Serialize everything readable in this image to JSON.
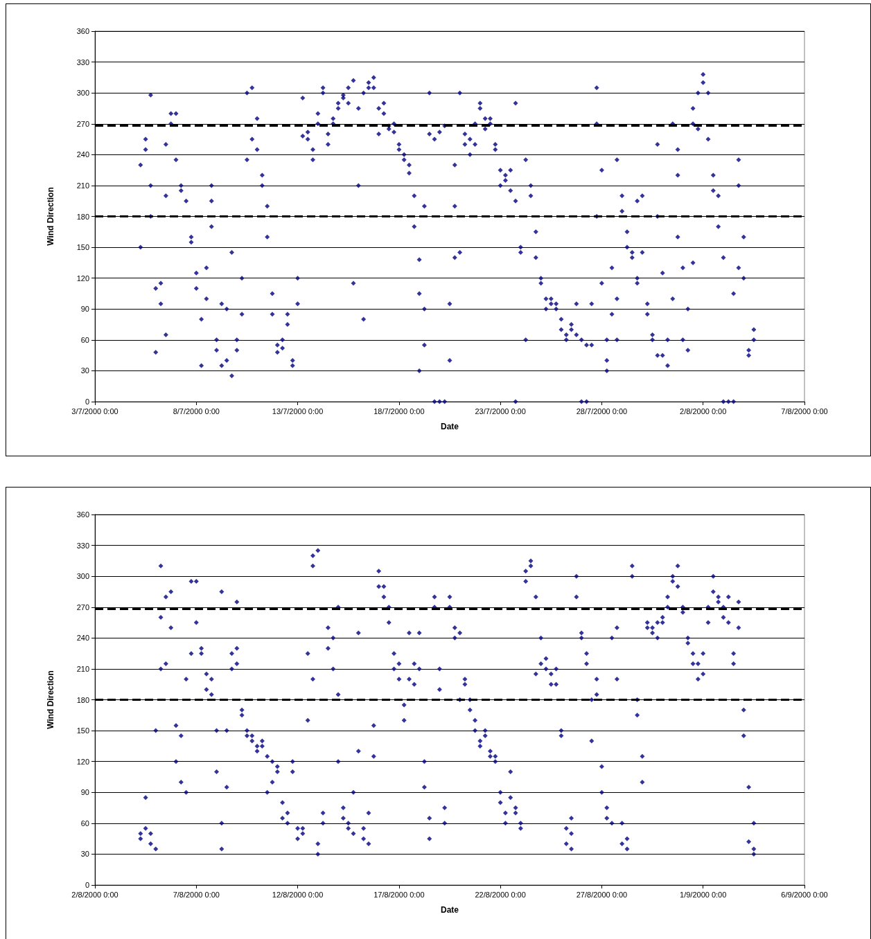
{
  "chart_data": [
    {
      "type": "scatter",
      "xlabel": "Date",
      "ylabel": "Wind Direction",
      "marker": "diamond",
      "grid": "y",
      "xlim": [
        "2000-07-03",
        "2000-08-07"
      ],
      "xticks": [
        {
          "value": "2000-07-03",
          "label": "3/7/2000 0:00"
        },
        {
          "value": "2000-07-08",
          "label": "8/7/2000 0:00"
        },
        {
          "value": "2000-07-13",
          "label": "13/7/2000 0:00"
        },
        {
          "value": "2000-07-18",
          "label": "18/7/2000 0:00"
        },
        {
          "value": "2000-07-23",
          "label": "23/7/2000 0:00"
        },
        {
          "value": "2000-07-28",
          "label": "28/7/2000 0:00"
        },
        {
          "value": "2000-08-02",
          "label": "2/8/2000 0:00"
        },
        {
          "value": "2000-08-07",
          "label": "7/8/2000 0:00"
        }
      ],
      "ylim": [
        0,
        360
      ],
      "yticks": [
        0,
        30,
        60,
        90,
        120,
        150,
        180,
        210,
        240,
        270,
        300,
        330,
        360
      ],
      "ref_lines": [
        {
          "axis": "y",
          "value": 268,
          "label": null,
          "color": "#000000",
          "line_style": "dashed"
        },
        {
          "axis": "y",
          "value": 180,
          "label": null,
          "color": "#000000",
          "line_style": "dashed"
        }
      ],
      "series": [
        {
          "color": "#000080",
          "x": [
            "2000-07-05T06:00",
            "2000-07-05T06:00",
            "2000-07-05T12:00",
            "2000-07-05T12:00",
            "2000-07-05T18:00",
            "2000-07-05T18:00",
            "2000-07-05T18:00",
            "2000-07-06T00:00",
            "2000-07-06T00:00",
            "2000-07-06T06:00",
            "2000-07-06T06:00",
            "2000-07-06T12:00",
            "2000-07-06T12:00",
            "2000-07-06T12:00",
            "2000-07-06T18:00",
            "2000-07-06T18:00",
            "2000-07-07T00:00",
            "2000-07-07T00:00",
            "2000-07-07T06:00",
            "2000-07-07T06:00",
            "2000-07-07T12:00",
            "2000-07-07T18:00",
            "2000-07-07T18:00",
            "2000-07-08T00:00",
            "2000-07-08T00:00",
            "2000-07-08T06:00",
            "2000-07-08T06:00",
            "2000-07-08T12:00",
            "2000-07-08T12:00",
            "2000-07-08T18:00",
            "2000-07-08T18:00",
            "2000-07-08T18:00",
            "2000-07-09T00:00",
            "2000-07-09T00:00",
            "2000-07-09T06:00",
            "2000-07-09T06:00",
            "2000-07-09T12:00",
            "2000-07-09T12:00",
            "2000-07-09T18:00",
            "2000-07-09T18:00",
            "2000-07-10T00:00",
            "2000-07-10T00:00",
            "2000-07-10T06:00",
            "2000-07-10T06:00",
            "2000-07-10T12:00",
            "2000-07-10T12:00",
            "2000-07-10T18:00",
            "2000-07-10T18:00",
            "2000-07-11T00:00",
            "2000-07-11T00:00",
            "2000-07-11T06:00",
            "2000-07-11T06:00",
            "2000-07-11T12:00",
            "2000-07-11T12:00",
            "2000-07-11T18:00",
            "2000-07-11T18:00",
            "2000-07-12T00:00",
            "2000-07-12T00:00",
            "2000-07-12T06:00",
            "2000-07-12T06:00",
            "2000-07-12T12:00",
            "2000-07-12T12:00",
            "2000-07-12T18:00",
            "2000-07-12T18:00",
            "2000-07-13T00:00",
            "2000-07-13T00:00",
            "2000-07-13T06:00",
            "2000-07-13T06:00",
            "2000-07-13T12:00",
            "2000-07-13T12:00",
            "2000-07-13T18:00",
            "2000-07-13T18:00",
            "2000-07-14T00:00",
            "2000-07-14T00:00",
            "2000-07-14T06:00",
            "2000-07-14T06:00",
            "2000-07-14T12:00",
            "2000-07-14T12:00",
            "2000-07-14T18:00",
            "2000-07-14T18:00",
            "2000-07-15T00:00",
            "2000-07-15T00:00",
            "2000-07-15T06:00",
            "2000-07-15T06:00",
            "2000-07-15T12:00",
            "2000-07-15T12:00",
            "2000-07-15T18:00",
            "2000-07-15T18:00",
            "2000-07-16T00:00",
            "2000-07-16T00:00",
            "2000-07-16T06:00",
            "2000-07-16T06:00",
            "2000-07-16T12:00",
            "2000-07-16T12:00",
            "2000-07-16T18:00",
            "2000-07-16T18:00",
            "2000-07-17T00:00",
            "2000-07-17T00:00",
            "2000-07-17T06:00",
            "2000-07-17T06:00",
            "2000-07-17T12:00",
            "2000-07-17T12:00",
            "2000-07-17T18:00",
            "2000-07-17T18:00",
            "2000-07-18T00:00",
            "2000-07-18T00:00",
            "2000-07-18T06:00",
            "2000-07-18T06:00",
            "2000-07-18T12:00",
            "2000-07-18T12:00",
            "2000-07-18T18:00",
            "2000-07-18T18:00",
            "2000-07-19T00:00",
            "2000-07-19T00:00",
            "2000-07-19T00:00",
            "2000-07-19T06:00",
            "2000-07-19T06:00",
            "2000-07-19T06:00",
            "2000-07-19T12:00",
            "2000-07-19T12:00",
            "2000-07-19T18:00",
            "2000-07-19T18:00",
            "2000-07-20T00:00",
            "2000-07-20T00:00",
            "2000-07-20T06:00",
            "2000-07-20T06:00",
            "2000-07-20T12:00",
            "2000-07-20T12:00",
            "2000-07-20T18:00",
            "2000-07-20T18:00",
            "2000-07-20T18:00",
            "2000-07-21T00:00",
            "2000-07-21T00:00",
            "2000-07-21T06:00",
            "2000-07-21T06:00",
            "2000-07-21T12:00",
            "2000-07-21T12:00",
            "2000-07-21T18:00",
            "2000-07-21T18:00",
            "2000-07-22T00:00",
            "2000-07-22T00:00",
            "2000-07-22T06:00",
            "2000-07-22T06:00",
            "2000-07-22T12:00",
            "2000-07-22T12:00",
            "2000-07-22T18:00",
            "2000-07-22T18:00",
            "2000-07-23T00:00",
            "2000-07-23T00:00",
            "2000-07-23T06:00",
            "2000-07-23T06:00",
            "2000-07-23T12:00",
            "2000-07-23T12:00",
            "2000-07-23T18:00",
            "2000-07-23T18:00",
            "2000-07-23T18:00",
            "2000-07-24T00:00",
            "2000-07-24T00:00",
            "2000-07-24T06:00",
            "2000-07-24T06:00",
            "2000-07-24T12:00",
            "2000-07-24T12:00",
            "2000-07-24T18:00",
            "2000-07-24T18:00",
            "2000-07-25T00:00",
            "2000-07-25T00:00",
            "2000-07-25T06:00",
            "2000-07-25T06:00",
            "2000-07-25T12:00",
            "2000-07-25T12:00",
            "2000-07-25T18:00",
            "2000-07-25T18:00",
            "2000-07-26T00:00",
            "2000-07-26T00:00",
            "2000-07-26T06:00",
            "2000-07-26T06:00",
            "2000-07-26T12:00",
            "2000-07-26T12:00",
            "2000-07-26T18:00",
            "2000-07-26T18:00",
            "2000-07-27T00:00",
            "2000-07-27T00:00",
            "2000-07-27T06:00",
            "2000-07-27T06:00",
            "2000-07-27T12:00",
            "2000-07-27T12:00",
            "2000-07-27T18:00",
            "2000-07-27T18:00",
            "2000-07-27T18:00",
            "2000-07-28T00:00",
            "2000-07-28T00:00",
            "2000-07-28T06:00",
            "2000-07-28T06:00",
            "2000-07-28T06:00",
            "2000-07-28T12:00",
            "2000-07-28T12:00",
            "2000-07-28T18:00",
            "2000-07-28T18:00",
            "2000-07-28T18:00",
            "2000-07-29T00:00",
            "2000-07-29T00:00",
            "2000-07-29T06:00",
            "2000-07-29T06:00",
            "2000-07-29T12:00",
            "2000-07-29T12:00",
            "2000-07-29T18:00",
            "2000-07-29T18:00",
            "2000-07-29T18:00",
            "2000-07-30T00:00",
            "2000-07-30T00:00",
            "2000-07-30T06:00",
            "2000-07-30T06:00",
            "2000-07-30T12:00",
            "2000-07-30T12:00",
            "2000-07-30T18:00",
            "2000-07-30T18:00",
            "2000-07-30T18:00",
            "2000-07-31T00:00",
            "2000-07-31T00:00",
            "2000-07-31T06:00",
            "2000-07-31T06:00",
            "2000-07-31T12:00",
            "2000-07-31T12:00",
            "2000-07-31T18:00",
            "2000-07-31T18:00",
            "2000-07-31T18:00",
            "2000-08-01T00:00",
            "2000-08-01T00:00",
            "2000-08-01T06:00",
            "2000-08-01T06:00",
            "2000-08-01T12:00",
            "2000-08-01T12:00",
            "2000-08-01T12:00",
            "2000-08-01T18:00",
            "2000-08-01T18:00",
            "2000-08-02T00:00",
            "2000-08-02T00:00",
            "2000-08-02T06:00",
            "2000-08-02T06:00",
            "2000-08-02T12:00",
            "2000-08-02T12:00",
            "2000-08-02T18:00",
            "2000-08-02T18:00",
            "2000-08-03T00:00",
            "2000-08-03T00:00",
            "2000-08-03T06:00",
            "2000-08-03T12:00",
            "2000-08-03T12:00",
            "2000-08-03T18:00",
            "2000-08-03T18:00",
            "2000-08-03T18:00",
            "2000-08-04T00:00",
            "2000-08-04T00:00",
            "2000-08-04T06:00",
            "2000-08-04T06:00",
            "2000-08-04T12:00",
            "2000-08-04T12:00"
          ],
          "values": [
            150,
            230,
            255,
            245,
            210,
            298,
            180,
            110,
            48,
            95,
            115,
            65,
            200,
            250,
            270,
            280,
            280,
            235,
            210,
            205,
            195,
            160,
            155,
            125,
            110,
            80,
            35,
            130,
            100,
            210,
            195,
            170,
            60,
            50,
            95,
            35,
            90,
            40,
            145,
            25,
            60,
            50,
            120,
            85,
            235,
            300,
            305,
            255,
            275,
            245,
            220,
            210,
            190,
            160,
            105,
            85,
            48,
            55,
            52,
            60,
            85,
            75,
            40,
            35,
            120,
            95,
            258,
            295,
            255,
            262,
            235,
            245,
            270,
            280,
            305,
            300,
            260,
            250,
            270,
            275,
            285,
            290,
            295,
            298,
            305,
            290,
            312,
            115,
            210,
            285,
            300,
            80,
            310,
            305,
            315,
            305,
            285,
            260,
            280,
            290,
            268,
            265,
            270,
            262,
            250,
            245,
            235,
            240,
            230,
            222,
            200,
            170,
            105,
            30,
            138,
            55,
            90,
            190,
            300,
            260,
            255,
            0,
            0,
            262,
            0,
            268,
            40,
            95,
            230,
            190,
            140,
            300,
            145,
            260,
            250,
            240,
            255,
            250,
            270,
            285,
            290,
            265,
            275,
            275,
            270,
            250,
            245,
            225,
            210,
            215,
            220,
            225,
            205,
            0,
            290,
            195,
            150,
            145,
            60,
            235,
            200,
            210,
            165,
            140,
            120,
            115,
            90,
            100,
            100,
            95,
            95,
            90,
            80,
            70,
            60,
            65,
            75,
            70,
            95,
            65,
            0,
            60,
            0,
            55,
            55,
            95,
            305,
            270,
            180,
            225,
            115,
            40,
            30,
            60,
            130,
            85,
            235,
            100,
            60,
            200,
            185,
            165,
            150,
            145,
            140,
            120,
            115,
            195,
            145,
            200,
            95,
            85,
            65,
            60,
            180,
            250,
            45,
            45,
            125,
            60,
            35,
            270,
            100,
            245,
            220,
            160,
            130,
            60,
            90,
            50,
            270,
            285,
            135,
            265,
            300,
            310,
            318,
            300,
            255,
            220,
            205,
            200,
            170,
            140,
            0,
            0,
            0,
            105,
            130,
            235,
            210,
            160,
            120,
            45,
            50,
            70,
            60
          ]
        }
      ]
    },
    {
      "type": "scatter",
      "xlabel": "Date",
      "ylabel": "Wind Direction",
      "marker": "diamond",
      "grid": "y",
      "xlim": [
        "2000-08-02",
        "2000-09-06"
      ],
      "xticks": [
        {
          "value": "2000-08-02",
          "label": "2/8/2000 0:00"
        },
        {
          "value": "2000-08-07",
          "label": "7/8/2000 0:00"
        },
        {
          "value": "2000-08-12",
          "label": "12/8/2000 0:00"
        },
        {
          "value": "2000-08-17",
          "label": "17/8/2000 0:00"
        },
        {
          "value": "2000-08-22",
          "label": "22/8/2000 0:00"
        },
        {
          "value": "2000-08-27",
          "label": "27/8/2000 0:00"
        },
        {
          "value": "2000-09-01",
          "label": "1/9/2000 0:00"
        },
        {
          "value": "2000-09-06",
          "label": "6/9/2000 0:00"
        }
      ],
      "ylim": [
        0,
        360
      ],
      "yticks": [
        0,
        30,
        60,
        90,
        120,
        150,
        180,
        210,
        240,
        270,
        300,
        330,
        360
      ],
      "ref_lines": [
        {
          "axis": "y",
          "value": 268,
          "label": null,
          "color": "#000000",
          "line_style": "dashed"
        },
        {
          "axis": "y",
          "value": 180,
          "label": null,
          "color": "#000000",
          "line_style": "dashed"
        }
      ],
      "series": [
        {
          "color": "#000080",
          "x": [
            "2000-08-04T06:00",
            "2000-08-04T06:00",
            "2000-08-04T12:00",
            "2000-08-04T12:00",
            "2000-08-04T18:00",
            "2000-08-04T18:00",
            "2000-08-05T00:00",
            "2000-08-05T00:00",
            "2000-08-05T06:00",
            "2000-08-05T06:00",
            "2000-08-05T06:00",
            "2000-08-05T12:00",
            "2000-08-05T12:00",
            "2000-08-05T18:00",
            "2000-08-05T18:00",
            "2000-08-06T00:00",
            "2000-08-06T00:00",
            "2000-08-06T06:00",
            "2000-08-06T06:00",
            "2000-08-06T12:00",
            "2000-08-06T12:00",
            "2000-08-06T18:00",
            "2000-08-06T18:00",
            "2000-08-07T00:00",
            "2000-08-07T00:00",
            "2000-08-07T06:00",
            "2000-08-07T06:00",
            "2000-08-07T12:00",
            "2000-08-07T12:00",
            "2000-08-07T18:00",
            "2000-08-07T18:00",
            "2000-08-08T00:00",
            "2000-08-08T00:00",
            "2000-08-08T06:00",
            "2000-08-08T06:00",
            "2000-08-08T06:00",
            "2000-08-08T12:00",
            "2000-08-08T12:00",
            "2000-08-08T18:00",
            "2000-08-08T18:00",
            "2000-08-09T00:00",
            "2000-08-09T00:00",
            "2000-08-09T00:00",
            "2000-08-09T06:00",
            "2000-08-09T06:00",
            "2000-08-09T12:00",
            "2000-08-09T12:00",
            "2000-08-09T18:00",
            "2000-08-09T18:00",
            "2000-08-10T00:00",
            "2000-08-10T00:00",
            "2000-08-10T06:00",
            "2000-08-10T06:00",
            "2000-08-10T12:00",
            "2000-08-10T12:00",
            "2000-08-10T18:00",
            "2000-08-10T18:00",
            "2000-08-11T00:00",
            "2000-08-11T00:00",
            "2000-08-11T06:00",
            "2000-08-11T06:00",
            "2000-08-11T12:00",
            "2000-08-11T12:00",
            "2000-08-11T18:00",
            "2000-08-11T18:00",
            "2000-08-12T00:00",
            "2000-08-12T00:00",
            "2000-08-12T06:00",
            "2000-08-12T06:00",
            "2000-08-12T12:00",
            "2000-08-12T12:00",
            "2000-08-12T18:00",
            "2000-08-12T18:00",
            "2000-08-12T18:00",
            "2000-08-13T00:00",
            "2000-08-13T00:00",
            "2000-08-13T00:00",
            "2000-08-13T06:00",
            "2000-08-13T06:00",
            "2000-08-13T12:00",
            "2000-08-13T12:00",
            "2000-08-13T18:00",
            "2000-08-13T18:00",
            "2000-08-14T00:00",
            "2000-08-14T00:00",
            "2000-08-14T00:00",
            "2000-08-14T06:00",
            "2000-08-14T06:00",
            "2000-08-14T12:00",
            "2000-08-14T12:00",
            "2000-08-14T18:00",
            "2000-08-14T18:00",
            "2000-08-15T00:00",
            "2000-08-15T00:00",
            "2000-08-15T06:00",
            "2000-08-15T06:00",
            "2000-08-15T12:00",
            "2000-08-15T12:00",
            "2000-08-15T18:00",
            "2000-08-15T18:00",
            "2000-08-16T00:00",
            "2000-08-16T00:00",
            "2000-08-16T06:00",
            "2000-08-16T06:00",
            "2000-08-16T12:00",
            "2000-08-16T12:00",
            "2000-08-16T18:00",
            "2000-08-16T18:00",
            "2000-08-17T00:00",
            "2000-08-17T00:00",
            "2000-08-17T06:00",
            "2000-08-17T06:00",
            "2000-08-17T12:00",
            "2000-08-17T12:00",
            "2000-08-17T18:00",
            "2000-08-17T18:00",
            "2000-08-18T00:00",
            "2000-08-18T00:00",
            "2000-08-18T06:00",
            "2000-08-18T06:00",
            "2000-08-18T12:00",
            "2000-08-18T12:00",
            "2000-08-18T18:00",
            "2000-08-18T18:00",
            "2000-08-19T00:00",
            "2000-08-19T00:00",
            "2000-08-19T06:00",
            "2000-08-19T06:00",
            "2000-08-19T12:00",
            "2000-08-19T12:00",
            "2000-08-19T18:00",
            "2000-08-19T18:00",
            "2000-08-20T00:00",
            "2000-08-20T00:00",
            "2000-08-20T06:00",
            "2000-08-20T06:00",
            "2000-08-20T12:00",
            "2000-08-20T12:00",
            "2000-08-20T18:00",
            "2000-08-20T18:00",
            "2000-08-21T00:00",
            "2000-08-21T00:00",
            "2000-08-21T06:00",
            "2000-08-21T06:00",
            "2000-08-21T12:00",
            "2000-08-21T12:00",
            "2000-08-21T18:00",
            "2000-08-21T18:00",
            "2000-08-22T00:00",
            "2000-08-22T00:00",
            "2000-08-22T06:00",
            "2000-08-22T06:00",
            "2000-08-22T12:00",
            "2000-08-22T12:00",
            "2000-08-22T18:00",
            "2000-08-22T18:00",
            "2000-08-23T00:00",
            "2000-08-23T00:00",
            "2000-08-23T06:00",
            "2000-08-23T06:00",
            "2000-08-23T12:00",
            "2000-08-23T12:00",
            "2000-08-23T18:00",
            "2000-08-23T18:00",
            "2000-08-24T00:00",
            "2000-08-24T00:00",
            "2000-08-24T06:00",
            "2000-08-24T06:00",
            "2000-08-24T12:00",
            "2000-08-24T12:00",
            "2000-08-24T18:00",
            "2000-08-24T18:00",
            "2000-08-25T00:00",
            "2000-08-25T00:00",
            "2000-08-25T06:00",
            "2000-08-25T06:00",
            "2000-08-25T12:00",
            "2000-08-25T12:00",
            "2000-08-25T12:00",
            "2000-08-25T18:00",
            "2000-08-25T18:00",
            "2000-08-26T00:00",
            "2000-08-26T00:00",
            "2000-08-26T06:00",
            "2000-08-26T06:00",
            "2000-08-26T12:00",
            "2000-08-26T12:00",
            "2000-08-26T18:00",
            "2000-08-26T18:00",
            "2000-08-27T00:00",
            "2000-08-27T00:00",
            "2000-08-27T06:00",
            "2000-08-27T06:00",
            "2000-08-27T12:00",
            "2000-08-27T12:00",
            "2000-08-27T18:00",
            "2000-08-27T18:00",
            "2000-08-28T00:00",
            "2000-08-28T00:00",
            "2000-08-28T06:00",
            "2000-08-28T06:00",
            "2000-08-28T12:00",
            "2000-08-28T12:00",
            "2000-08-28T18:00",
            "2000-08-28T18:00",
            "2000-08-29T00:00",
            "2000-08-29T00:00",
            "2000-08-29T06:00",
            "2000-08-29T06:00",
            "2000-08-29T12:00",
            "2000-08-29T12:00",
            "2000-08-29T18:00",
            "2000-08-29T18:00",
            "2000-08-30T00:00",
            "2000-08-30T00:00",
            "2000-08-30T06:00",
            "2000-08-30T06:00",
            "2000-08-30T12:00",
            "2000-08-30T12:00",
            "2000-08-30T18:00",
            "2000-08-30T18:00",
            "2000-08-31T00:00",
            "2000-08-31T00:00",
            "2000-08-31T06:00",
            "2000-08-31T06:00",
            "2000-08-31T12:00",
            "2000-08-31T12:00",
            "2000-08-31T18:00",
            "2000-08-31T18:00",
            "2000-09-01T00:00",
            "2000-09-01T00:00",
            "2000-09-01T06:00",
            "2000-09-01T06:00",
            "2000-09-01T12:00",
            "2000-09-01T12:00",
            "2000-09-01T18:00",
            "2000-09-01T18:00",
            "2000-09-02T00:00",
            "2000-09-02T00:00",
            "2000-09-02T06:00",
            "2000-09-02T06:00",
            "2000-09-02T12:00",
            "2000-09-02T12:00",
            "2000-09-02T18:00",
            "2000-09-02T18:00",
            "2000-09-03T00:00",
            "2000-09-03T00:00",
            "2000-09-03T06:00",
            "2000-09-03T06:00",
            "2000-09-03T12:00",
            "2000-09-03T12:00",
            "2000-09-03T12:00"
          ],
          "values": [
            50,
            45,
            55,
            85,
            40,
            50,
            35,
            150,
            260,
            210,
            310,
            280,
            215,
            250,
            285,
            155,
            120,
            145,
            100,
            200,
            90,
            225,
            295,
            295,
            255,
            230,
            225,
            205,
            190,
            200,
            185,
            150,
            110,
            285,
            60,
            35,
            95,
            150,
            225,
            210,
            230,
            215,
            275,
            170,
            165,
            150,
            145,
            140,
            145,
            135,
            130,
            140,
            135,
            125,
            90,
            100,
            120,
            115,
            110,
            80,
            65,
            70,
            60,
            110,
            120,
            55,
            45,
            50,
            55,
            160,
            225,
            320,
            310,
            200,
            30,
            40,
            325,
            70,
            60,
            230,
            250,
            240,
            210,
            270,
            120,
            185,
            75,
            65,
            60,
            55,
            90,
            50,
            130,
            245,
            55,
            45,
            40,
            70,
            155,
            125,
            305,
            290,
            280,
            290,
            270,
            255,
            225,
            210,
            200,
            215,
            175,
            160,
            200,
            245,
            195,
            215,
            245,
            210,
            120,
            95,
            65,
            45,
            280,
            270,
            190,
            210,
            75,
            60,
            270,
            280,
            240,
            250,
            245,
            180,
            200,
            195,
            180,
            170,
            160,
            150,
            140,
            135,
            145,
            150,
            130,
            125,
            120,
            125,
            80,
            90,
            70,
            60,
            85,
            110,
            75,
            70,
            60,
            55,
            305,
            295,
            310,
            315,
            280,
            205,
            240,
            215,
            220,
            210,
            205,
            195,
            210,
            195,
            150,
            145,
            55,
            40,
            35,
            50,
            65,
            300,
            280,
            245,
            240,
            225,
            215,
            180,
            140,
            200,
            185,
            115,
            90,
            75,
            65,
            60,
            240,
            250,
            200,
            60,
            40,
            35,
            45,
            310,
            300,
            180,
            165,
            100,
            125,
            250,
            255,
            245,
            250,
            240,
            255,
            260,
            255,
            270,
            280,
            295,
            300,
            310,
            290,
            270,
            265,
            240,
            235,
            225,
            215,
            200,
            215,
            225,
            205,
            255,
            270,
            300,
            285,
            280,
            275,
            270,
            260,
            255,
            280,
            215,
            225,
            275,
            250,
            170,
            145,
            42,
            95,
            60,
            35,
            30
          ]
        }
      ]
    }
  ]
}
